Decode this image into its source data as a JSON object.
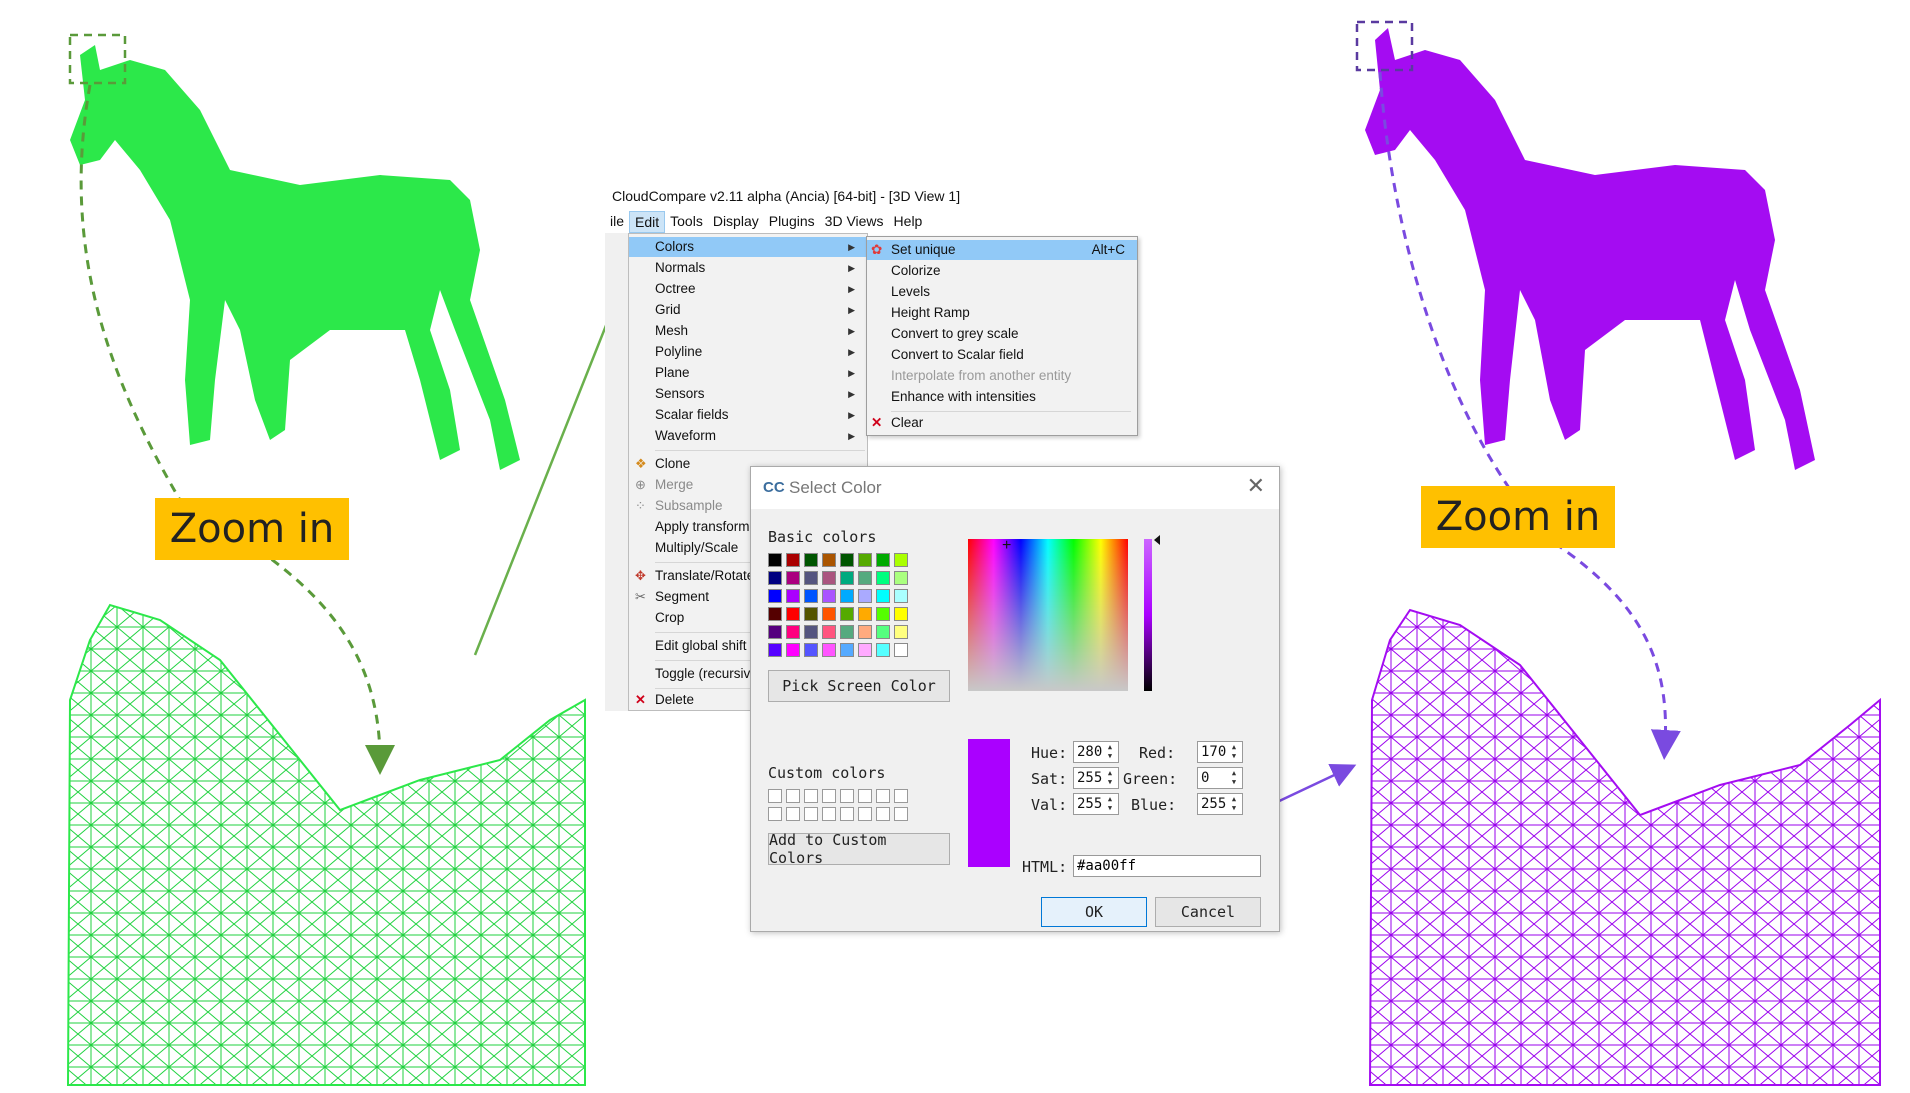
{
  "app": {
    "title": "CloudCompare v2.11 alpha (Ancia) [64-bit] - [3D View 1]",
    "menubar": [
      "ile",
      "Edit",
      "Tools",
      "Display",
      "Plugins",
      "3D Views",
      "Help"
    ],
    "active_menu": "Edit"
  },
  "labels": {
    "zoom_left": "Zoom in",
    "zoom_right": "Zoom in"
  },
  "colors": {
    "left_mesh": "#33ee55",
    "right_mesh": "#aa00ff",
    "label_bg": "#ffc000"
  },
  "edit_menu": {
    "items": [
      {
        "label": "Colors",
        "submenu": true,
        "highlight": true
      },
      {
        "label": "Normals",
        "submenu": true
      },
      {
        "label": "Octree",
        "submenu": true
      },
      {
        "label": "Grid",
        "submenu": true
      },
      {
        "label": "Mesh",
        "submenu": true
      },
      {
        "label": "Polyline",
        "submenu": true
      },
      {
        "label": "Plane",
        "submenu": true
      },
      {
        "label": "Sensors",
        "submenu": true
      },
      {
        "label": "Scalar fields",
        "submenu": true
      },
      {
        "label": "Waveform",
        "submenu": true
      },
      {
        "label": "Clone",
        "icon": "clone-icon"
      },
      {
        "label": "Merge",
        "disabled": true,
        "icon": "merge-icon"
      },
      {
        "label": "Subsample",
        "disabled": true,
        "icon": "subsample-icon"
      },
      {
        "label": "Apply transform"
      },
      {
        "label": "Multiply/Scale"
      },
      {
        "label": "Translate/Rotate",
        "icon": "translate-icon"
      },
      {
        "label": "Segment",
        "icon": "segment-icon"
      },
      {
        "label": "Crop"
      },
      {
        "label": "Edit global shift"
      },
      {
        "label": "Toggle (recursive)"
      },
      {
        "label": "Delete",
        "icon": "delete-icon"
      }
    ]
  },
  "colors_submenu": {
    "items": [
      {
        "label": "Set unique",
        "shortcut": "Alt+C",
        "highlight": true,
        "icon": "color-wheel-icon"
      },
      {
        "label": "Colorize"
      },
      {
        "label": "Levels"
      },
      {
        "label": "Height Ramp"
      },
      {
        "label": "Convert to grey scale"
      },
      {
        "label": "Convert to Scalar field"
      },
      {
        "label": "Interpolate from another entity",
        "disabled": true
      },
      {
        "label": "Enhance with intensities"
      },
      {
        "label": "Clear",
        "icon": "clear-icon"
      }
    ]
  },
  "select_color_dialog": {
    "title": "Select Color",
    "basic_colors_label": "Basic colors",
    "custom_colors_label": "Custom colors",
    "pick_screen_color_label": "Pick Screen Color",
    "add_custom_label": "Add to Custom Colors",
    "basic_colors": [
      "#000000",
      "#aa0000",
      "#005500",
      "#aa5500",
      "#005500",
      "#55aa00",
      "#00aa00",
      "#aaff00",
      "#000080",
      "#aa007f",
      "#55557f",
      "#aa557f",
      "#00aa7f",
      "#55aa7f",
      "#00ff7f",
      "#aaff7f",
      "#0000ff",
      "#aa00ff",
      "#0055ff",
      "#aa55ff",
      "#00aaff",
      "#aaaaff",
      "#00ffff",
      "#aaffff",
      "#550000",
      "#ff0000",
      "#555500",
      "#ff5500",
      "#55aa00",
      "#ffaa00",
      "#55ff00",
      "#ffff00",
      "#55007f",
      "#ff007f",
      "#55557f",
      "#ff557f",
      "#55aa7f",
      "#ffaa7f",
      "#55ff7f",
      "#ffff7f",
      "#5500ff",
      "#ff00ff",
      "#5555ff",
      "#ff55ff",
      "#55aaff",
      "#ffaaff",
      "#55ffff",
      "#ffffff"
    ],
    "hue_label": "Hue:",
    "sat_label": "Sat:",
    "val_label": "Val:",
    "red_label": "Red:",
    "green_label": "Green:",
    "blue_label": "Blue:",
    "html_label": "HTML:",
    "hue": "280",
    "sat": "255",
    "val": "255",
    "red": "170",
    "green": "0",
    "blue": "255",
    "html": "#aa00ff",
    "preview_color": "#aa00ff",
    "ok_label": "OK",
    "cancel_label": "Cancel"
  }
}
